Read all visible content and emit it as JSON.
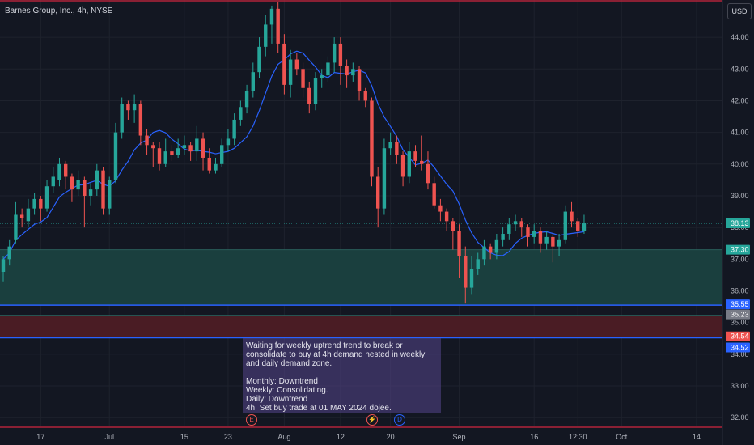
{
  "symbol_title": "Barnes Group, Inc., 4h, NYSE",
  "currency": "USD",
  "note_text": "Waiting for weekly uptrend trend to break or consolidate to buy at 4h demand nested in weekly and daily demand zone.\n\nMonthly: Downtrend\nWeekly: Consolidating.\nDaily: Downtrend\n4h: Set buy trade at 01 MAY 2024 dojee.",
  "events": {
    "earnings": "E",
    "split": "⚡",
    "dividend": "D"
  },
  "colors": {
    "background": "#131722",
    "up": "#26a69a",
    "down": "#ef5350",
    "ma": "#2962ff",
    "demand_zone": "#1a3f3e",
    "lower_zone": "#4a1c24",
    "hline": "#2962ff",
    "top_line": "#b2243a"
  },
  "chart_data": {
    "type": "candlestick",
    "title": "Barnes Group, Inc., 4h, NYSE",
    "y_axis": {
      "ticks": [
        32.0,
        33.0,
        34.0,
        35.0,
        36.0,
        37.0,
        38.0,
        39.0,
        40.0,
        41.0,
        42.0,
        43.0,
        44.0
      ],
      "range": [
        31.75,
        45.1
      ]
    },
    "x_axis": {
      "ticks": [
        "17",
        "Jul",
        "15",
        "23",
        "Aug",
        "12",
        "20",
        "Sep",
        "16",
        "12:30",
        "Oct",
        "14"
      ],
      "tick_bars": [
        6,
        17,
        29,
        36,
        45,
        54,
        62,
        73,
        85,
        92,
        99,
        111
      ]
    },
    "price_labels": [
      {
        "value": 38.13,
        "color": "#26a69a"
      },
      {
        "value": 37.3,
        "color": "#26a69a"
      },
      {
        "value": 35.55,
        "color": "#2962ff"
      },
      {
        "value": 35.23,
        "color": "#787b86"
      },
      {
        "value": 34.54,
        "color": "#ef5350"
      },
      {
        "value": 34.52,
        "color": "#2962ff"
      }
    ],
    "zones": [
      {
        "name": "demand",
        "from": 35.55,
        "to": 37.3
      },
      {
        "name": "lower",
        "from": 34.52,
        "to": 35.23
      }
    ],
    "horizontal_lines": [
      35.55,
      34.52
    ],
    "current_price": 38.13,
    "candles": [
      [
        36.6,
        37.0,
        36.3,
        37.1
      ],
      [
        37.0,
        37.4,
        36.8,
        37.6
      ],
      [
        37.6,
        38.4,
        37.5,
        38.8
      ],
      [
        38.4,
        38.3,
        38.0,
        38.6
      ],
      [
        38.2,
        38.6,
        38.0,
        38.9
      ],
      [
        38.6,
        38.9,
        38.4,
        39.1
      ],
      [
        38.9,
        38.6,
        38.2,
        39.0
      ],
      [
        38.6,
        39.3,
        38.5,
        39.5
      ],
      [
        39.3,
        39.6,
        39.1,
        39.9
      ],
      [
        39.5,
        40.0,
        39.3,
        40.2
      ],
      [
        40.0,
        39.6,
        39.2,
        40.1
      ],
      [
        39.6,
        39.2,
        38.8,
        39.7
      ],
      [
        39.2,
        39.5,
        39.0,
        39.8
      ],
      [
        39.5,
        39.0,
        38.0,
        39.6
      ],
      [
        39.0,
        39.2,
        38.7,
        39.4
      ],
      [
        39.2,
        39.8,
        39.0,
        40.0
      ],
      [
        39.8,
        38.6,
        38.4,
        39.9
      ],
      [
        38.6,
        39.5,
        38.4,
        39.6
      ],
      [
        39.5,
        41.0,
        39.4,
        41.3
      ],
      [
        41.0,
        41.9,
        40.8,
        42.1
      ],
      [
        41.9,
        41.7,
        41.4,
        42.0
      ],
      [
        41.7,
        41.9,
        41.3,
        42.2
      ],
      [
        41.9,
        40.9,
        40.6,
        42.0
      ],
      [
        40.9,
        40.6,
        40.3,
        41.1
      ],
      [
        40.6,
        40.5,
        39.9,
        40.7
      ],
      [
        40.5,
        40.0,
        39.8,
        40.7
      ],
      [
        40.0,
        40.4,
        39.9,
        40.8
      ],
      [
        40.4,
        40.3,
        40.1,
        40.6
      ],
      [
        40.3,
        40.5,
        40.2,
        40.8
      ],
      [
        40.5,
        40.6,
        40.3,
        40.9
      ],
      [
        40.6,
        40.4,
        40.1,
        40.7
      ],
      [
        40.4,
        40.8,
        40.1,
        41.2
      ],
      [
        40.8,
        40.2,
        39.8,
        41.0
      ],
      [
        40.2,
        39.8,
        39.7,
        40.5
      ],
      [
        39.8,
        40.0,
        39.7,
        40.2
      ],
      [
        40.0,
        40.6,
        39.9,
        40.8
      ],
      [
        40.6,
        40.8,
        40.4,
        41.1
      ],
      [
        40.8,
        41.4,
        40.6,
        41.6
      ],
      [
        41.4,
        41.8,
        41.2,
        42.0
      ],
      [
        41.8,
        42.3,
        41.6,
        42.5
      ],
      [
        42.3,
        42.9,
        42.1,
        43.2
      ],
      [
        42.9,
        43.7,
        42.7,
        44.0
      ],
      [
        43.7,
        44.4,
        43.4,
        44.7
      ],
      [
        44.4,
        44.9,
        43.8,
        45.0
      ],
      [
        44.9,
        43.8,
        43.5,
        45.1
      ],
      [
        43.8,
        42.5,
        42.2,
        44.1
      ],
      [
        42.5,
        43.3,
        42.1,
        43.6
      ],
      [
        43.3,
        43.0,
        42.8,
        43.5
      ],
      [
        43.0,
        42.4,
        42.1,
        43.2
      ],
      [
        42.4,
        41.9,
        41.6,
        42.6
      ],
      [
        41.9,
        42.7,
        41.7,
        42.9
      ],
      [
        42.7,
        42.8,
        42.4,
        43.0
      ],
      [
        42.8,
        43.2,
        42.6,
        43.4
      ],
      [
        43.2,
        43.8,
        42.9,
        44.0
      ],
      [
        43.8,
        43.1,
        42.5,
        44.0
      ],
      [
        43.1,
        42.8,
        42.4,
        43.3
      ],
      [
        42.8,
        43.0,
        42.6,
        43.2
      ],
      [
        43.0,
        42.3,
        42.0,
        43.1
      ],
      [
        42.3,
        42.0,
        41.8,
        42.4
      ],
      [
        42.0,
        39.6,
        39.3,
        42.1
      ],
      [
        39.6,
        38.6,
        38.0,
        39.9
      ],
      [
        38.6,
        40.5,
        38.4,
        40.8
      ],
      [
        40.5,
        40.7,
        40.3,
        41.0
      ],
      [
        40.7,
        40.3,
        40.0,
        40.9
      ],
      [
        40.3,
        39.6,
        39.3,
        40.4
      ],
      [
        39.6,
        40.4,
        39.4,
        40.7
      ],
      [
        40.4,
        40.1,
        39.9,
        40.6
      ],
      [
        40.1,
        40.0,
        39.8,
        40.9
      ],
      [
        40.0,
        39.4,
        39.2,
        40.4
      ],
      [
        39.4,
        38.7,
        38.6,
        39.6
      ],
      [
        38.7,
        38.5,
        38.2,
        38.9
      ],
      [
        38.5,
        38.2,
        37.9,
        38.6
      ],
      [
        38.2,
        37.9,
        37.3,
        38.3
      ],
      [
        37.9,
        37.1,
        36.4,
        38.1
      ],
      [
        37.1,
        36.1,
        35.6,
        37.4
      ],
      [
        36.1,
        36.7,
        35.9,
        37.1
      ],
      [
        36.7,
        37.0,
        36.5,
        37.2
      ],
      [
        37.0,
        37.4,
        36.8,
        37.6
      ],
      [
        37.4,
        37.2,
        37.0,
        37.5
      ],
      [
        37.2,
        37.6,
        37.0,
        37.8
      ],
      [
        37.6,
        37.8,
        37.4,
        38.0
      ],
      [
        37.8,
        38.1,
        37.6,
        38.3
      ],
      [
        38.1,
        38.2,
        37.9,
        38.4
      ],
      [
        38.2,
        38.0,
        37.7,
        38.3
      ],
      [
        38.0,
        37.7,
        37.4,
        38.1
      ],
      [
        37.7,
        37.9,
        37.5,
        38.1
      ],
      [
        37.9,
        37.5,
        37.2,
        38.0
      ],
      [
        37.5,
        37.7,
        37.3,
        37.9
      ],
      [
        37.7,
        37.4,
        36.9,
        37.8
      ],
      [
        37.4,
        37.6,
        37.1,
        37.8
      ],
      [
        37.6,
        38.5,
        37.5,
        38.7
      ],
      [
        38.5,
        38.2,
        38.0,
        38.8
      ],
      [
        38.2,
        37.9,
        37.7,
        38.3
      ],
      [
        37.9,
        38.13,
        37.8,
        38.4
      ]
    ]
  }
}
